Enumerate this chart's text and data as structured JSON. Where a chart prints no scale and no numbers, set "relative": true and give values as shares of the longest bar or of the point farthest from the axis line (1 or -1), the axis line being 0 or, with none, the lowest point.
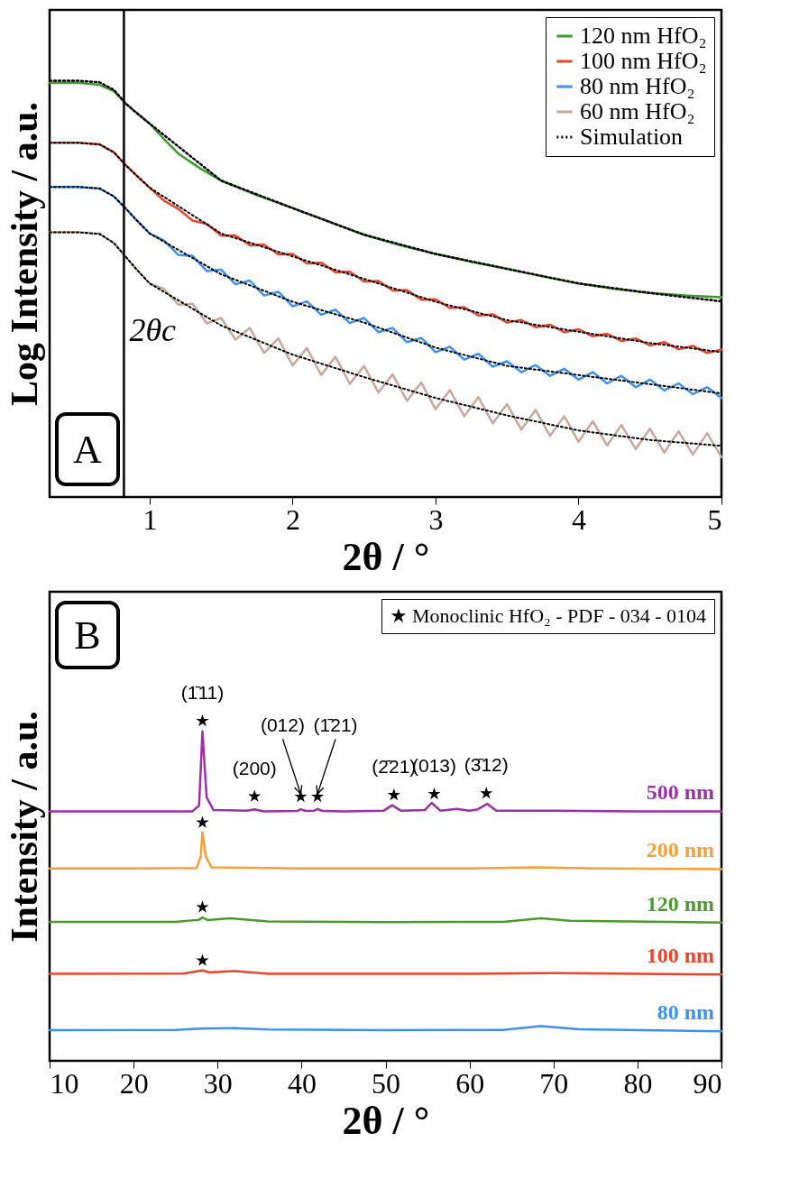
{
  "chart_data": [
    {
      "type": "line",
      "xlabel": "2θ / °",
      "ylabel": "Log Intensity / a.u.",
      "relative": true,
      "xlim": [
        0.3,
        5
      ],
      "xticks": [
        1,
        2,
        3,
        4,
        5
      ],
      "legend": "top right",
      "annotations": [
        "A"
      ],
      "ref_lines": [
        {
          "axis": "x",
          "value": 0.82,
          "label": "2θc",
          "color": "#000000"
        }
      ],
      "series": [
        {
          "name": "120 nm HfO₂",
          "color": "#3f9a2e",
          "x": [
            0.3,
            0.5,
            0.65,
            0.75,
            0.83,
            0.9,
            1.0,
            1.1,
            1.2,
            1.35,
            1.5,
            1.75,
            2.0,
            2.25,
            2.5,
            2.75,
            3.0,
            3.25,
            3.5,
            3.75,
            4.0,
            4.25,
            4.5,
            4.75,
            5.0
          ],
          "values": [
            0.995,
            0.995,
            0.99,
            0.975,
            0.946,
            0.925,
            0.897,
            0.86,
            0.825,
            0.79,
            0.76,
            0.725,
            0.694,
            0.662,
            0.63,
            0.605,
            0.584,
            0.565,
            0.548,
            0.53,
            0.513,
            0.5,
            0.49,
            0.484,
            0.48
          ]
        },
        {
          "name": "100 nm HfO₂",
          "color": "#e8452c",
          "x": [
            0.3,
            0.5,
            0.65,
            0.75,
            0.83,
            0.9,
            1.0,
            1.1,
            1.2,
            1.3,
            1.4,
            1.5,
            1.6,
            1.7,
            1.8,
            1.9,
            2.0,
            2.1,
            2.2,
            2.3,
            2.4,
            2.5,
            2.6,
            2.7,
            2.8,
            2.9,
            3.0,
            3.1,
            3.2,
            3.3,
            3.4,
            3.5,
            3.6,
            3.7,
            3.8,
            3.9,
            4.0,
            4.1,
            4.2,
            4.3,
            4.4,
            4.5,
            4.6,
            4.7,
            4.8,
            4.9,
            5.0
          ],
          "values": [
            0.851,
            0.851,
            0.847,
            0.828,
            0.798,
            0.775,
            0.743,
            0.712,
            0.692,
            0.664,
            0.656,
            0.628,
            0.628,
            0.605,
            0.606,
            0.583,
            0.584,
            0.561,
            0.563,
            0.54,
            0.541,
            0.518,
            0.519,
            0.496,
            0.497,
            0.474,
            0.475,
            0.454,
            0.456,
            0.436,
            0.439,
            0.419,
            0.425,
            0.408,
            0.414,
            0.396,
            0.403,
            0.386,
            0.392,
            0.375,
            0.381,
            0.364,
            0.372,
            0.355,
            0.363,
            0.346,
            0.354
          ]
        },
        {
          "name": "80 nm HfO₂",
          "color": "#3d91f0",
          "x": [
            0.3,
            0.5,
            0.65,
            0.75,
            0.83,
            0.9,
            1.0,
            1.1,
            1.2,
            1.3,
            1.4,
            1.5,
            1.6,
            1.7,
            1.8,
            1.9,
            2.0,
            2.1,
            2.2,
            2.3,
            2.4,
            2.5,
            2.6,
            2.7,
            2.8,
            2.9,
            3.0,
            3.1,
            3.2,
            3.3,
            3.4,
            3.5,
            3.6,
            3.7,
            3.8,
            3.9,
            4.0,
            4.1,
            4.2,
            4.3,
            4.4,
            4.5,
            4.6,
            4.7,
            4.8,
            4.9,
            5.0
          ],
          "values": [
            0.745,
            0.745,
            0.741,
            0.722,
            0.694,
            0.668,
            0.633,
            0.616,
            0.582,
            0.579,
            0.543,
            0.546,
            0.511,
            0.52,
            0.484,
            0.493,
            0.458,
            0.47,
            0.438,
            0.45,
            0.418,
            0.43,
            0.396,
            0.406,
            0.372,
            0.382,
            0.348,
            0.361,
            0.33,
            0.344,
            0.313,
            0.326,
            0.3,
            0.317,
            0.291,
            0.308,
            0.282,
            0.3,
            0.273,
            0.291,
            0.264,
            0.282,
            0.256,
            0.273,
            0.247,
            0.264,
            0.238
          ]
        },
        {
          "name": "60 nm HfO₂",
          "color": "#c9a79a",
          "x": [
            0.3,
            0.5,
            0.65,
            0.75,
            0.83,
            0.9,
            1.0,
            1.1,
            1.2,
            1.3,
            1.4,
            1.5,
            1.6,
            1.7,
            1.8,
            1.9,
            2.0,
            2.1,
            2.2,
            2.3,
            2.4,
            2.5,
            2.6,
            2.7,
            2.8,
            2.9,
            3.0,
            3.1,
            3.2,
            3.3,
            3.4,
            3.5,
            3.6,
            3.7,
            3.8,
            3.9,
            4.0,
            4.1,
            4.2,
            4.3,
            4.4,
            4.5,
            4.6,
            4.7,
            4.8,
            4.9,
            5.0
          ],
          "values": [
            0.636,
            0.636,
            0.632,
            0.61,
            0.578,
            0.55,
            0.513,
            0.5,
            0.462,
            0.464,
            0.417,
            0.43,
            0.378,
            0.406,
            0.346,
            0.381,
            0.316,
            0.358,
            0.293,
            0.337,
            0.272,
            0.315,
            0.251,
            0.295,
            0.231,
            0.275,
            0.211,
            0.257,
            0.194,
            0.24,
            0.177,
            0.223,
            0.162,
            0.209,
            0.147,
            0.194,
            0.133,
            0.182,
            0.124,
            0.173,
            0.115,
            0.164,
            0.107,
            0.158,
            0.102,
            0.153,
            0.096
          ]
        },
        {
          "name": "Simulation",
          "color": "#000000",
          "line_style": "dotted",
          "x": [
            0.3,
            0.5,
            0.65,
            0.75,
            0.83,
            0.9,
            1.0,
            1.5,
            2.0,
            2.5,
            3.0,
            3.5,
            4.0,
            4.5,
            5.0
          ],
          "values": [
            1.0,
            1.0,
            0.996,
            0.978,
            0.946,
            0.925,
            0.897,
            0.76,
            0.694,
            0.63,
            0.584,
            0.548,
            0.513,
            0.49,
            0.47
          ]
        },
        {
          "color": "#000000",
          "line_style": "dotted",
          "x": [
            0.3,
            0.5,
            0.65,
            0.75,
            0.83,
            0.9,
            1.0,
            1.5,
            2.0,
            2.5,
            3.0,
            3.5,
            4.0,
            4.5,
            5.0
          ],
          "values": [
            0.851,
            0.851,
            0.847,
            0.828,
            0.798,
            0.775,
            0.743,
            0.633,
            0.578,
            0.524,
            0.469,
            0.425,
            0.397,
            0.37,
            0.348
          ]
        },
        {
          "color": "#000000",
          "line_style": "dotted",
          "x": [
            0.3,
            0.5,
            0.65,
            0.75,
            0.83,
            0.9,
            1.0,
            1.5,
            2.0,
            2.5,
            3.0,
            3.5,
            4.0,
            4.5,
            5.0
          ],
          "values": [
            0.745,
            0.745,
            0.741,
            0.722,
            0.694,
            0.668,
            0.633,
            0.535,
            0.469,
            0.419,
            0.359,
            0.315,
            0.293,
            0.271,
            0.249
          ]
        },
        {
          "color": "#000000",
          "line_style": "dotted",
          "x": [
            0.3,
            0.5,
            0.65,
            0.75,
            0.83,
            0.9,
            1.0,
            1.5,
            2.0,
            2.5,
            3.0,
            3.5,
            4.0,
            4.5,
            5.0
          ],
          "values": [
            0.636,
            0.636,
            0.632,
            0.61,
            0.578,
            0.55,
            0.513,
            0.412,
            0.342,
            0.288,
            0.238,
            0.196,
            0.16,
            0.137,
            0.123
          ]
        }
      ]
    },
    {
      "type": "line",
      "xlabel": "2θ / °",
      "ylabel": "Intensity / a.u.",
      "relative": true,
      "xlim": [
        10,
        90
      ],
      "xticks": [
        10,
        20,
        30,
        40,
        50,
        60,
        70,
        80,
        90
      ],
      "legend": "top right",
      "annotations": [
        "B",
        {
          "text": "(1̄11)",
          "x": 28.2,
          "y": 1.0
        },
        {
          "text": "(200)",
          "x": 34.4,
          "y": 0.778
        },
        {
          "text": "(012)",
          "x": 39.9,
          "y": 0.777
        },
        {
          "text": "(1̄21)",
          "x": 41.9,
          "y": 0.777
        },
        {
          "text": "(2̄21)",
          "x": 51.0,
          "y": 0.782
        },
        {
          "text": "(013)",
          "x": 55.8,
          "y": 0.785
        },
        {
          "text": "(3̄12)",
          "x": 62.0,
          "y": 0.787
        }
      ],
      "series": [
        {
          "name": "500 nm",
          "color": "#9b30a8",
          "x": [
            10,
            20,
            27,
            27.8,
            28.2,
            28.7,
            29.5,
            33.5,
            34.4,
            35.5,
            39.5,
            39.9,
            40.5,
            41.5,
            41.9,
            42.5,
            45,
            49.8,
            50.8,
            51.8,
            54.7,
            55.5,
            56.5,
            58.5,
            60,
            61,
            62.1,
            63.2,
            70,
            80,
            90
          ],
          "values": [
            0.734,
            0.734,
            0.734,
            0.751,
            0.969,
            0.775,
            0.738,
            0.736,
            0.74,
            0.734,
            0.735,
            0.74,
            0.735,
            0.736,
            0.741,
            0.735,
            0.734,
            0.736,
            0.752,
            0.736,
            0.738,
            0.759,
            0.736,
            0.741,
            0.736,
            0.74,
            0.756,
            0.736,
            0.736,
            0.734,
            0.734
          ]
        },
        {
          "name": "200 nm",
          "color": "#f5a03a",
          "x": [
            10,
            20,
            27.5,
            28.0,
            28.2,
            28.6,
            29.3,
            40,
            60,
            68,
            75,
            90
          ],
          "values": [
            0.566,
            0.566,
            0.567,
            0.601,
            0.673,
            0.601,
            0.569,
            0.566,
            0.566,
            0.569,
            0.566,
            0.564
          ]
        },
        {
          "name": "120 nm",
          "color": "#4a9a2e",
          "x": [
            10,
            25,
            27.8,
            28.2,
            28.8,
            31.5,
            36,
            50,
            64,
            68.5,
            72,
            90
          ],
          "values": [
            0.409,
            0.409,
            0.415,
            0.422,
            0.414,
            0.419,
            0.41,
            0.408,
            0.409,
            0.419,
            0.412,
            0.407
          ]
        },
        {
          "name": "100 nm",
          "color": "#e8452c",
          "x": [
            10,
            26,
            28.2,
            29,
            32,
            36,
            60,
            70,
            90
          ],
          "values": [
            0.256,
            0.257,
            0.266,
            0.26,
            0.264,
            0.256,
            0.256,
            0.258,
            0.254
          ]
        },
        {
          "name": "80 nm",
          "color": "#3d91f0",
          "x": [
            10,
            25,
            28,
            32,
            36,
            50,
            64,
            68.5,
            73,
            90
          ],
          "values": [
            0.09,
            0.091,
            0.095,
            0.096,
            0.092,
            0.09,
            0.091,
            0.102,
            0.093,
            0.087
          ]
        },
        {
          "name": "Monoclinic HfO₂ - PDF - 034 - 0104",
          "type": "scatter",
          "marker": "star",
          "color": "#000000",
          "x": [
            28.2,
            34.4,
            39.9,
            41.9,
            51.0,
            55.8,
            62.0,
            28.2,
            28.2,
            28.2
          ],
          "values": [
            1.0,
            0.778,
            0.777,
            0.777,
            0.782,
            0.785,
            0.787,
            0.701,
            0.452,
            0.295
          ]
        }
      ]
    }
  ]
}
